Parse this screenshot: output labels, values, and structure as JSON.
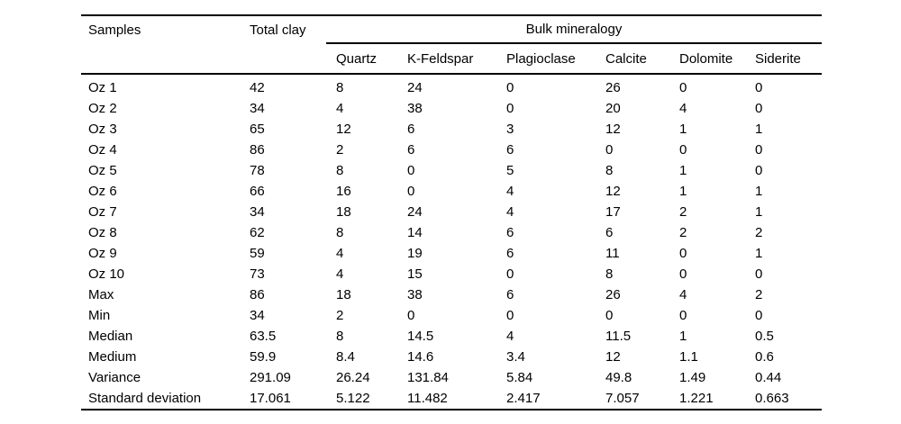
{
  "page": {
    "background_color": "#ffffff",
    "text_color": "#000000",
    "rule_color": "#000000"
  },
  "table": {
    "headers": {
      "samples": "Samples",
      "total_clay": "Total clay",
      "group": "Bulk mineralogy",
      "minerals": [
        "Quartz",
        "K-Feldspar",
        "Plagioclase",
        "Calcite",
        "Dolomite",
        "Siderite"
      ]
    },
    "rows": [
      {
        "label": "Oz 1",
        "total_clay": "42",
        "quartz": "8",
        "k_feldspar": "24",
        "plagioclase": "0",
        "calcite": "26",
        "dolomite": "0",
        "siderite": "0"
      },
      {
        "label": "Oz 2",
        "total_clay": "34",
        "quartz": "4",
        "k_feldspar": "38",
        "plagioclase": "0",
        "calcite": "20",
        "dolomite": "4",
        "siderite": "0"
      },
      {
        "label": "Oz 3",
        "total_clay": "65",
        "quartz": "12",
        "k_feldspar": "6",
        "plagioclase": "3",
        "calcite": "12",
        "dolomite": "1",
        "siderite": "1"
      },
      {
        "label": "Oz 4",
        "total_clay": "86",
        "quartz": "2",
        "k_feldspar": "6",
        "plagioclase": "6",
        "calcite": "0",
        "dolomite": "0",
        "siderite": "0"
      },
      {
        "label": "Oz 5",
        "total_clay": "78",
        "quartz": "8",
        "k_feldspar": "0",
        "plagioclase": "5",
        "calcite": "8",
        "dolomite": "1",
        "siderite": "0"
      },
      {
        "label": "Oz 6",
        "total_clay": "66",
        "quartz": "16",
        "k_feldspar": "0",
        "plagioclase": "4",
        "calcite": "12",
        "dolomite": "1",
        "siderite": "1"
      },
      {
        "label": "Oz 7",
        "total_clay": "34",
        "quartz": "18",
        "k_feldspar": "24",
        "plagioclase": "4",
        "calcite": "17",
        "dolomite": "2",
        "siderite": "1"
      },
      {
        "label": "Oz 8",
        "total_clay": "62",
        "quartz": "8",
        "k_feldspar": "14",
        "plagioclase": "6",
        "calcite": "6",
        "dolomite": "2",
        "siderite": "2"
      },
      {
        "label": "Oz 9",
        "total_clay": "59",
        "quartz": "4",
        "k_feldspar": "19",
        "plagioclase": "6",
        "calcite": "11",
        "dolomite": "0",
        "siderite": "1"
      },
      {
        "label": "Oz 10",
        "total_clay": "73",
        "quartz": "4",
        "k_feldspar": "15",
        "plagioclase": "0",
        "calcite": "8",
        "dolomite": "0",
        "siderite": "0"
      },
      {
        "label": "Max",
        "total_clay": "86",
        "quartz": "18",
        "k_feldspar": "38",
        "plagioclase": "6",
        "calcite": "26",
        "dolomite": "4",
        "siderite": "2"
      },
      {
        "label": "Min",
        "total_clay": "34",
        "quartz": "2",
        "k_feldspar": "0",
        "plagioclase": "0",
        "calcite": "0",
        "dolomite": "0",
        "siderite": "0"
      },
      {
        "label": "Median",
        "total_clay": "63.5",
        "quartz": "8",
        "k_feldspar": "14.5",
        "plagioclase": "4",
        "calcite": "11.5",
        "dolomite": "1",
        "siderite": "0.5"
      },
      {
        "label": "Medium",
        "total_clay": "59.9",
        "quartz": "8.4",
        "k_feldspar": "14.6",
        "plagioclase": "3.4",
        "calcite": "12",
        "dolomite": "1.1",
        "siderite": "0.6"
      },
      {
        "label": "Variance",
        "total_clay": "291.09",
        "quartz": "26.24",
        "k_feldspar": "131.84",
        "plagioclase": "5.84",
        "calcite": "49.8",
        "dolomite": "1.49",
        "siderite": "0.44"
      },
      {
        "label": "Standard deviation",
        "total_clay": "17.061",
        "quartz": "5.122",
        "k_feldspar": "11.482",
        "plagioclase": "2.417",
        "calcite": "7.057",
        "dolomite": "1.221",
        "siderite": "0.663"
      }
    ]
  }
}
